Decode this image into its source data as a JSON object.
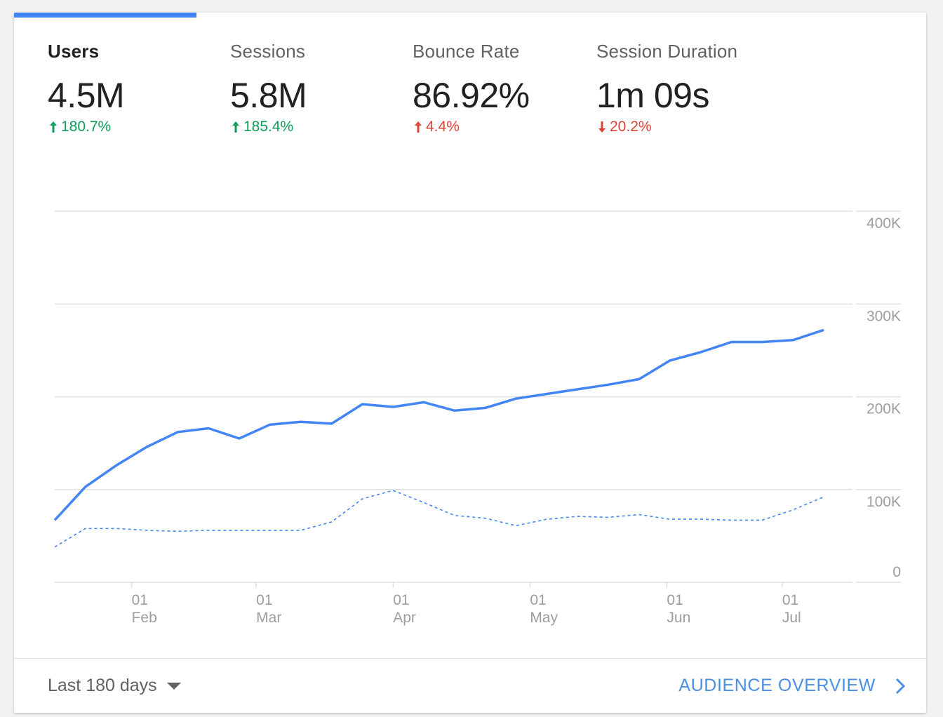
{
  "metrics": [
    {
      "label": "Users",
      "value": "4.5M",
      "delta": "180.7%",
      "direction": "up",
      "status": "good",
      "active": true
    },
    {
      "label": "Sessions",
      "value": "5.8M",
      "delta": "185.4%",
      "direction": "up",
      "status": "good",
      "active": false
    },
    {
      "label": "Bounce Rate",
      "value": "86.92%",
      "delta": "4.4%",
      "direction": "up",
      "status": "bad",
      "active": false
    },
    {
      "label": "Session Duration",
      "value": "1m 09s",
      "delta": "20.2%",
      "direction": "down",
      "status": "bad",
      "active": false
    }
  ],
  "colors": {
    "accent": "#4285f4",
    "good": "#0f9d58",
    "bad": "#db4437",
    "link": "#4a90e2",
    "grid": "#e0e0e0",
    "axis_text": "#9e9e9e"
  },
  "icons": {
    "up": "arrow-up-icon",
    "down": "arrow-down-icon",
    "dropdown": "caret-down-icon",
    "link": "chevron-right-icon"
  },
  "chart_data": {
    "type": "line",
    "y_ticks": [
      "400K",
      "300K",
      "200K",
      "100K",
      "0"
    ],
    "y_tick_values": [
      400000,
      300000,
      200000,
      100000,
      0
    ],
    "ylim": [
      0,
      400000
    ],
    "x_ticks": [
      {
        "day": "01",
        "month": "Feb"
      },
      {
        "day": "01",
        "month": "Mar"
      },
      {
        "day": "01",
        "month": "Apr"
      },
      {
        "day": "01",
        "month": "May"
      },
      {
        "day": "01",
        "month": "Jun"
      },
      {
        "day": "01",
        "month": "Jul"
      }
    ],
    "grid": true,
    "series": [
      {
        "style": "solid",
        "values": [
          67000,
          103000,
          126000,
          146000,
          162000,
          166000,
          155000,
          170000,
          173000,
          171000,
          192000,
          189000,
          194000,
          185000,
          188000,
          198000,
          203000,
          208000,
          213000,
          219000,
          239000,
          248000,
          259000,
          259000,
          261000,
          272000
        ]
      },
      {
        "style": "dashed",
        "values": [
          38000,
          58000,
          58000,
          56000,
          55000,
          56000,
          56000,
          56000,
          56000,
          65000,
          90000,
          99000,
          86000,
          72000,
          69000,
          61000,
          68000,
          71000,
          70000,
          73000,
          68000,
          68000,
          67000,
          67000,
          78000,
          92000
        ]
      }
    ]
  },
  "footer": {
    "range_label": "Last 180 days",
    "link_label": "AUDIENCE OVERVIEW"
  }
}
